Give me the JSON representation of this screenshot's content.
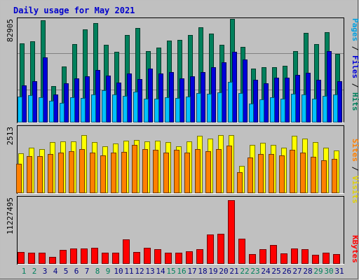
{
  "chart_data": {
    "type": "bar",
    "title": "Daily usage for May 2021",
    "categories": [
      "1",
      "2",
      "3",
      "4",
      "5",
      "6",
      "7",
      "8",
      "9",
      "10",
      "11",
      "12",
      "13",
      "14",
      "15",
      "16",
      "17",
      "18",
      "19",
      "20",
      "21",
      "22",
      "23",
      "24",
      "25",
      "26",
      "27",
      "28",
      "29",
      "30",
      "31"
    ],
    "weekend_days": [
      1,
      2,
      8,
      9,
      15,
      16,
      22,
      23,
      29,
      30
    ],
    "panels": [
      {
        "name": "hits-files-pages",
        "max_label": "82905",
        "ylim": [
          0,
          82905
        ],
        "series": [
          {
            "name": "Hits",
            "color": "#00805C",
            "values": [
              63000,
              64500,
              81500,
              29000,
              44500,
              62500,
              74000,
              79000,
              62000,
              56000,
              69500,
              75000,
              57000,
              59500,
              65000,
              65500,
              69500,
              75500,
              70500,
              61500,
              82500,
              60000,
              43000,
              44000,
              44000,
              45000,
              56500,
              71000,
              62500,
              72000,
              54500
            ]
          },
          {
            "name": "Files",
            "color": "#0000D8",
            "values": [
              29500,
              33000,
              51500,
              22000,
              31000,
              35000,
              36500,
              42000,
              37500,
              31500,
              39000,
              34500,
              43000,
              39000,
              40000,
              35000,
              37000,
              40000,
              44000,
              48000,
              56000,
              50000,
              34000,
              31000,
              35500,
              35500,
              38000,
              39500,
              34000,
              57000,
              33000
            ]
          },
          {
            "name": "Pages",
            "color": "#00C0FF",
            "values": [
              20500,
              21500,
              20000,
              17000,
              15500,
              20000,
              19500,
              22500,
              25500,
              22000,
              21000,
              24500,
              19000,
              19000,
              20000,
              19500,
              20500,
              23500,
              23000,
              24000,
              32000,
              23500,
              15000,
              18500,
              20000,
              19000,
              23000,
              22500,
              19000,
              21000,
              22000
            ]
          }
        ]
      },
      {
        "name": "visits-sites",
        "max_label": "2513",
        "ylim": [
          0,
          2513
        ],
        "series": [
          {
            "name": "Visits",
            "color": "#FFFF00",
            "values": [
              1490,
              1700,
              1650,
              1900,
              1950,
              1950,
              2170,
              1900,
              1750,
              1850,
              1960,
              2000,
              1950,
              1960,
              1900,
              1750,
              1950,
              2150,
              2030,
              2180,
              2180,
              1030,
              1810,
              1880,
              1810,
              1700,
              2140,
              2050,
              1910,
              1710,
              1590
            ]
          },
          {
            "name": "Sites",
            "color": "#FF8000",
            "values": [
              1110,
              1390,
              1380,
              1460,
              1510,
              1560,
              1640,
              1520,
              1410,
              1520,
              1540,
              1800,
              1660,
              1620,
              1520,
              1630,
              1510,
              1660,
              1580,
              1660,
              1780,
              790,
              1340,
              1460,
              1460,
              1420,
              1620,
              1520,
              1370,
              1240,
              1290
            ]
          }
        ]
      },
      {
        "name": "kbytes",
        "max_label": "11227495",
        "ylim": [
          0,
          11227495
        ],
        "series": [
          {
            "name": "KBytes",
            "color": "#FF0000",
            "values": [
              2000000,
              1900000,
              1850000,
              1150000,
              2300000,
              2630000,
              2600000,
              2650000,
              1880000,
              1850000,
              4100000,
              2000000,
              2680000,
              2400000,
              1900000,
              1900000,
              2050000,
              2500000,
              4950000,
              5050000,
              10600000,
              4200000,
              1600000,
              2420000,
              3200000,
              1800000,
              2540000,
              2460000,
              1500000,
              1900000,
              1670000
            ]
          }
        ]
      }
    ],
    "right_label_panel1": [
      "Pages",
      " / ",
      "Files",
      " / ",
      "Hits"
    ],
    "right_label_panel2": [
      "Sites",
      " / ",
      "Visits"
    ],
    "right_label_panel3": [
      "KBytes"
    ]
  }
}
